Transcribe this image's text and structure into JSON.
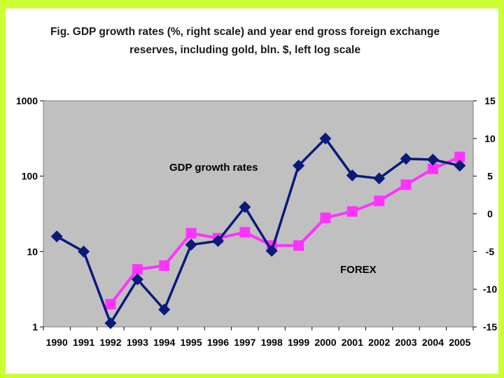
{
  "chart_data": {
    "type": "line",
    "title_lines": [
      "Fig. GDP growth rates (%, right scale) and year end gross foreign exchange",
      "reserves, including gold, bln. $, left log scale"
    ],
    "categories": [
      "1990",
      "1991",
      "1992",
      "1993",
      "1994",
      "1995",
      "1996",
      "1997",
      "1998",
      "1999",
      "2000",
      "2001",
      "2002",
      "2003",
      "2004",
      "2005"
    ],
    "left_axis": {
      "scale": "log",
      "ylim": [
        1,
        1000
      ],
      "ticks": [
        1,
        10,
        100,
        1000
      ],
      "tick_labels": [
        "1",
        "10",
        "100",
        "1000"
      ]
    },
    "right_axis": {
      "scale": "linear",
      "ylim": [
        -15,
        15
      ],
      "ticks": [
        -15,
        -10,
        -5,
        0,
        5,
        10,
        15
      ],
      "tick_labels": [
        "-15",
        "-10",
        "-5",
        "0",
        "5",
        "10",
        "15"
      ]
    },
    "series": [
      {
        "name": "GDP growth rates",
        "axis": "right",
        "marker": "diamond",
        "color": "#0a1a7a",
        "values": [
          -3.0,
          -5.0,
          -14.5,
          -8.7,
          -12.7,
          -4.1,
          -3.6,
          0.9,
          -4.9,
          6.4,
          10.0,
          5.1,
          4.7,
          7.3,
          7.2,
          6.4
        ]
      },
      {
        "name": "FOREX",
        "axis": "left",
        "marker": "square",
        "color": "#ff33ff",
        "values": [
          null,
          null,
          2.0,
          5.8,
          6.5,
          17.5,
          15.0,
          18.0,
          12.0,
          12.0,
          28.0,
          34.0,
          47.0,
          77.0,
          125.0,
          180.0
        ]
      }
    ],
    "annotations": [
      "GDP growth rates",
      "FOREX"
    ],
    "plot_background": "#c0c0c0",
    "grid": false
  }
}
